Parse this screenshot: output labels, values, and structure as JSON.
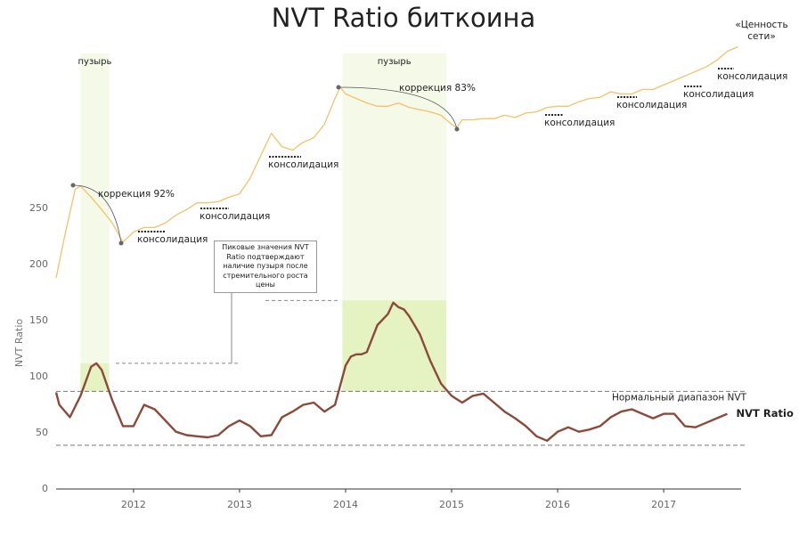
{
  "chart_data": {
    "type": "line",
    "title": "NVT Ratio биткоина",
    "y_label": "NVT  Ratio",
    "xlim": [
      2011.27,
      2017.73
    ],
    "xticks": [
      2012,
      2013,
      2014,
      2015,
      2016,
      2017
    ],
    "ylim": [
      0,
      400
    ],
    "yticks": [
      0,
      50,
      100,
      150,
      200,
      250
    ],
    "series": [
      {
        "name": "NVT Ratio",
        "color": "#8b4a3a",
        "x": [
          2011.27,
          2011.3,
          2011.4,
          2011.5,
          2011.6,
          2011.65,
          2011.7,
          2011.8,
          2011.9,
          2012.0,
          2012.1,
          2012.2,
          2012.3,
          2012.4,
          2012.5,
          2012.6,
          2012.7,
          2012.8,
          2012.9,
          2013.0,
          2013.1,
          2013.2,
          2013.3,
          2013.4,
          2013.5,
          2013.6,
          2013.7,
          2013.8,
          2013.9,
          2014.0,
          2014.05,
          2014.1,
          2014.15,
          2014.2,
          2014.3,
          2014.4,
          2014.45,
          2014.5,
          2014.55,
          2014.6,
          2014.7,
          2014.8,
          2014.9,
          2015.0,
          2015.1,
          2015.2,
          2015.3,
          2015.4,
          2015.5,
          2015.6,
          2015.7,
          2015.8,
          2015.9,
          2016.0,
          2016.1,
          2016.2,
          2016.3,
          2016.4,
          2016.5,
          2016.6,
          2016.7,
          2016.8,
          2016.9,
          2017.0,
          2017.1,
          2017.2,
          2017.3,
          2017.4,
          2017.5,
          2017.6
        ],
        "values": [
          86,
          75,
          64,
          83,
          109,
          112,
          106,
          79,
          56,
          56,
          75,
          71,
          61,
          51,
          48,
          47,
          46,
          48,
          56,
          61,
          56,
          47,
          48,
          64,
          69,
          75,
          77,
          69,
          75,
          110,
          118,
          120,
          120,
          122,
          146,
          156,
          166,
          162,
          160,
          154,
          138,
          114,
          94,
          83,
          77,
          83,
          85,
          77,
          69,
          63,
          56,
          47,
          43,
          51,
          55,
          51,
          53,
          56,
          64,
          69,
          71,
          67,
          63,
          67,
          67,
          56,
          55,
          59,
          63,
          67
        ]
      },
      {
        "name": "«Ценность сети»",
        "color": "#f3c26a",
        "x": [
          2011.27,
          2011.35,
          2011.45,
          2011.5,
          2011.6,
          2011.7,
          2011.8,
          2011.9,
          2012.0,
          2012.1,
          2012.2,
          2012.3,
          2012.4,
          2012.5,
          2012.6,
          2012.7,
          2012.8,
          2012.9,
          2013.0,
          2013.1,
          2013.2,
          2013.3,
          2013.4,
          2013.5,
          2013.6,
          2013.7,
          2013.8,
          2013.9,
          2013.95,
          2014.0,
          2014.1,
          2014.2,
          2014.3,
          2014.4,
          2014.5,
          2014.6,
          2014.7,
          2014.8,
          2014.9,
          2015.0,
          2015.05,
          2015.1,
          2015.2,
          2015.3,
          2015.4,
          2015.5,
          2015.6,
          2015.7,
          2015.8,
          2015.9,
          2016.0,
          2016.1,
          2016.2,
          2016.3,
          2016.4,
          2016.5,
          2016.6,
          2016.7,
          2016.8,
          2016.9,
          2017.0,
          2017.1,
          2017.2,
          2017.3,
          2017.4,
          2017.5,
          2017.6,
          2017.7
        ],
        "values": [
          188,
          225,
          267,
          270,
          260,
          249,
          237,
          220,
          229,
          233,
          233,
          237,
          244,
          249,
          255,
          255,
          256,
          260,
          263,
          277,
          297,
          317,
          305,
          302,
          309,
          313,
          325,
          348,
          358,
          352,
          348,
          344,
          341,
          341,
          344,
          340,
          338,
          336,
          333,
          325,
          322,
          329,
          329,
          330,
          330,
          333,
          331,
          335,
          336,
          340,
          341,
          341,
          345,
          348,
          349,
          354,
          352,
          352,
          356,
          356,
          360,
          364,
          368,
          372,
          376,
          382,
          390,
          394
        ]
      }
    ],
    "bubbles": [
      {
        "label": "пузырь",
        "x": [
          2011.5,
          2011.77
        ],
        "nvt_peak": 112
      },
      {
        "label": "пузырь",
        "x": [
          2013.97,
          2014.95
        ],
        "nvt_peak": 168
      }
    ],
    "normal_range": {
      "label": "Нормальный диапазон NVT",
      "values": [
        39,
        87
      ]
    },
    "corrections": [
      "коррекция 92%",
      "коррекция 83%"
    ],
    "consolidations": [
      "консолидация",
      "консолидация",
      "консолидация",
      "консолидация",
      "консолидация",
      "консолидация",
      "консолидация"
    ],
    "callout": "Пиковые значения NVT Ratio подтверждают наличие пузыря после стремительного роста цены"
  }
}
